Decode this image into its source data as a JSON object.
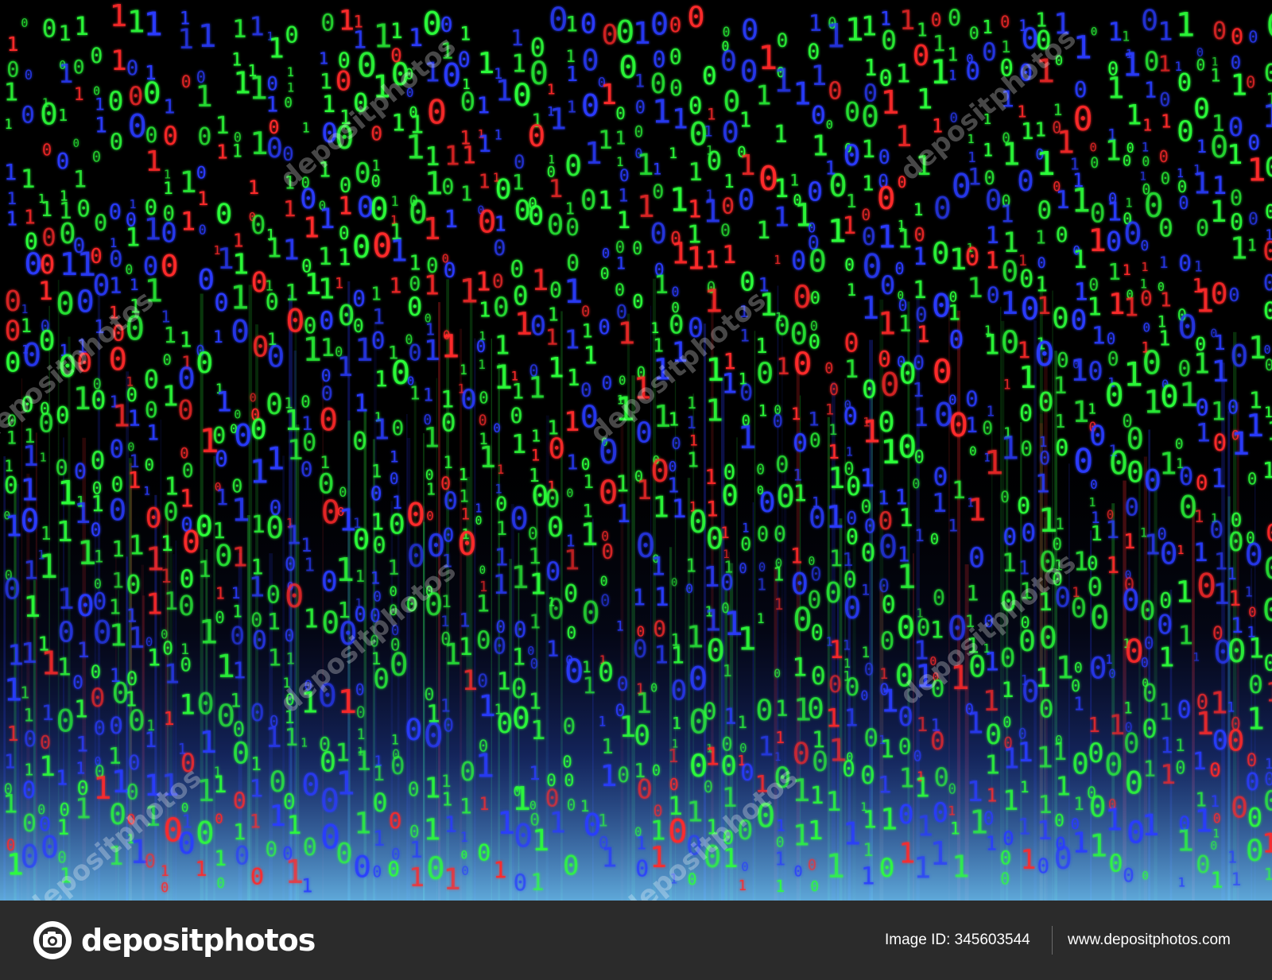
{
  "image": {
    "subject": "binary-code-rain",
    "glyphs": [
      "0",
      "1"
    ],
    "palette": {
      "background": "#000000",
      "green": "#2cff3a",
      "blue": "#2a3cff",
      "red": "#ff2a2a",
      "glow_bottom": "#6fc6ff"
    },
    "watermark_text": "depositphotos"
  },
  "footer": {
    "logo_text": "depositphotos",
    "logo_icon": "camera-aperture-icon",
    "image_id": "Image ID: 345603544",
    "site_url": "www.depositphotos.com",
    "background": "#2b2b2b"
  }
}
